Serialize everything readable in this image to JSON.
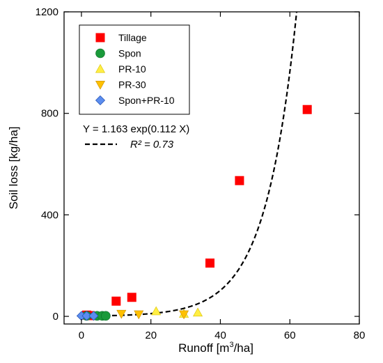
{
  "chart_data": {
    "type": "scatter",
    "xlabel_main": "Runoff [m",
    "xlabel_sup": "3",
    "xlabel_end": "/ha]",
    "ylabel": "Soil loss [kg/ha]",
    "xlim": [
      -5,
      80
    ],
    "ylim": [
      -30,
      1200
    ],
    "x_ticks": [
      0,
      20,
      40,
      60,
      80
    ],
    "y_ticks": [
      0,
      400,
      800,
      1200
    ],
    "grid": false,
    "legend_placement": "top-left",
    "series": [
      {
        "name": "Tillage",
        "marker": "square",
        "color": "#ff0000",
        "points": [
          [
            1.5,
            5
          ],
          [
            2.5,
            3
          ],
          [
            10,
            60
          ],
          [
            14.5,
            75
          ],
          [
            37,
            210
          ],
          [
            45.5,
            535
          ],
          [
            65,
            815
          ]
        ]
      },
      {
        "name": "Spon",
        "marker": "circle",
        "color": "#1a9a3a",
        "points": [
          [
            1.5,
            2
          ],
          [
            4.5,
            2
          ],
          [
            6,
            2
          ],
          [
            7,
            2
          ]
        ]
      },
      {
        "name": "PR-10",
        "marker": "triangle-up",
        "color": "#ffee44",
        "points": [
          [
            21.5,
            20
          ],
          [
            29.5,
            10
          ],
          [
            33.5,
            15
          ]
        ]
      },
      {
        "name": "PR-30",
        "marker": "triangle-down",
        "color": "#ffc000",
        "points": [
          [
            11.5,
            10
          ],
          [
            16.5,
            8
          ],
          [
            29.5,
            8
          ]
        ]
      },
      {
        "name": "Spon+PR-10",
        "marker": "diamond",
        "color": "#5b8def",
        "points": [
          [
            0,
            2
          ],
          [
            1.5,
            2
          ],
          [
            3.5,
            2
          ]
        ]
      }
    ],
    "fit": {
      "equation": "Y = 1.163 exp(0.112 X)",
      "r2_label": "R² = 0.73",
      "a": 1.163,
      "b": 0.112,
      "x_range": [
        0,
        65
      ]
    }
  }
}
